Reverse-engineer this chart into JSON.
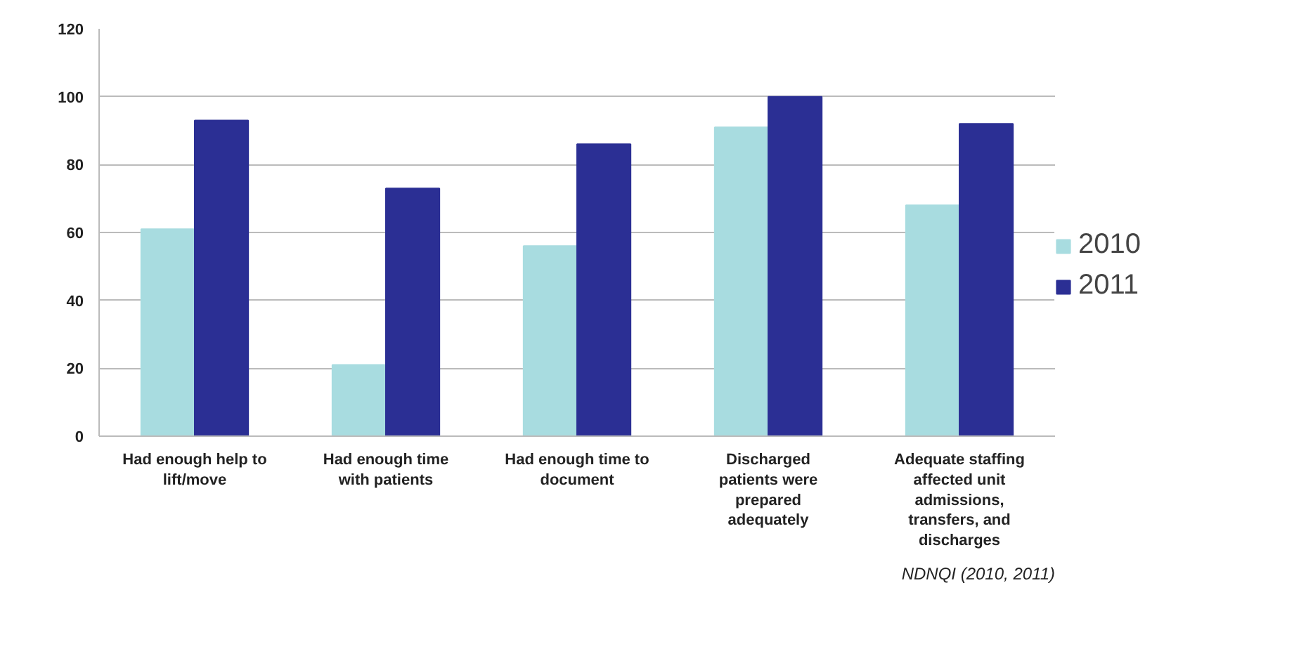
{
  "chart_data": {
    "type": "bar",
    "categories": [
      "Had enough help to lift/move",
      "Had enough time with patients",
      "Had enough time to document",
      "Discharged patients were prepared adequately",
      "Adequate staffing affected unit admissions, transfers, and discharges"
    ],
    "series": [
      {
        "name": "2010",
        "color": "#a8dce0",
        "values": [
          61,
          21,
          56,
          91,
          68
        ]
      },
      {
        "name": "2011",
        "color": "#2b2f94",
        "values": [
          93,
          73,
          86,
          100,
          92
        ]
      }
    ],
    "ylim": [
      0,
      120
    ],
    "yticks": [
      0,
      20,
      40,
      60,
      80,
      100,
      120
    ],
    "grid": "y",
    "legend": "right",
    "annotations": [
      "NDNQI (2010, 2011)"
    ]
  }
}
